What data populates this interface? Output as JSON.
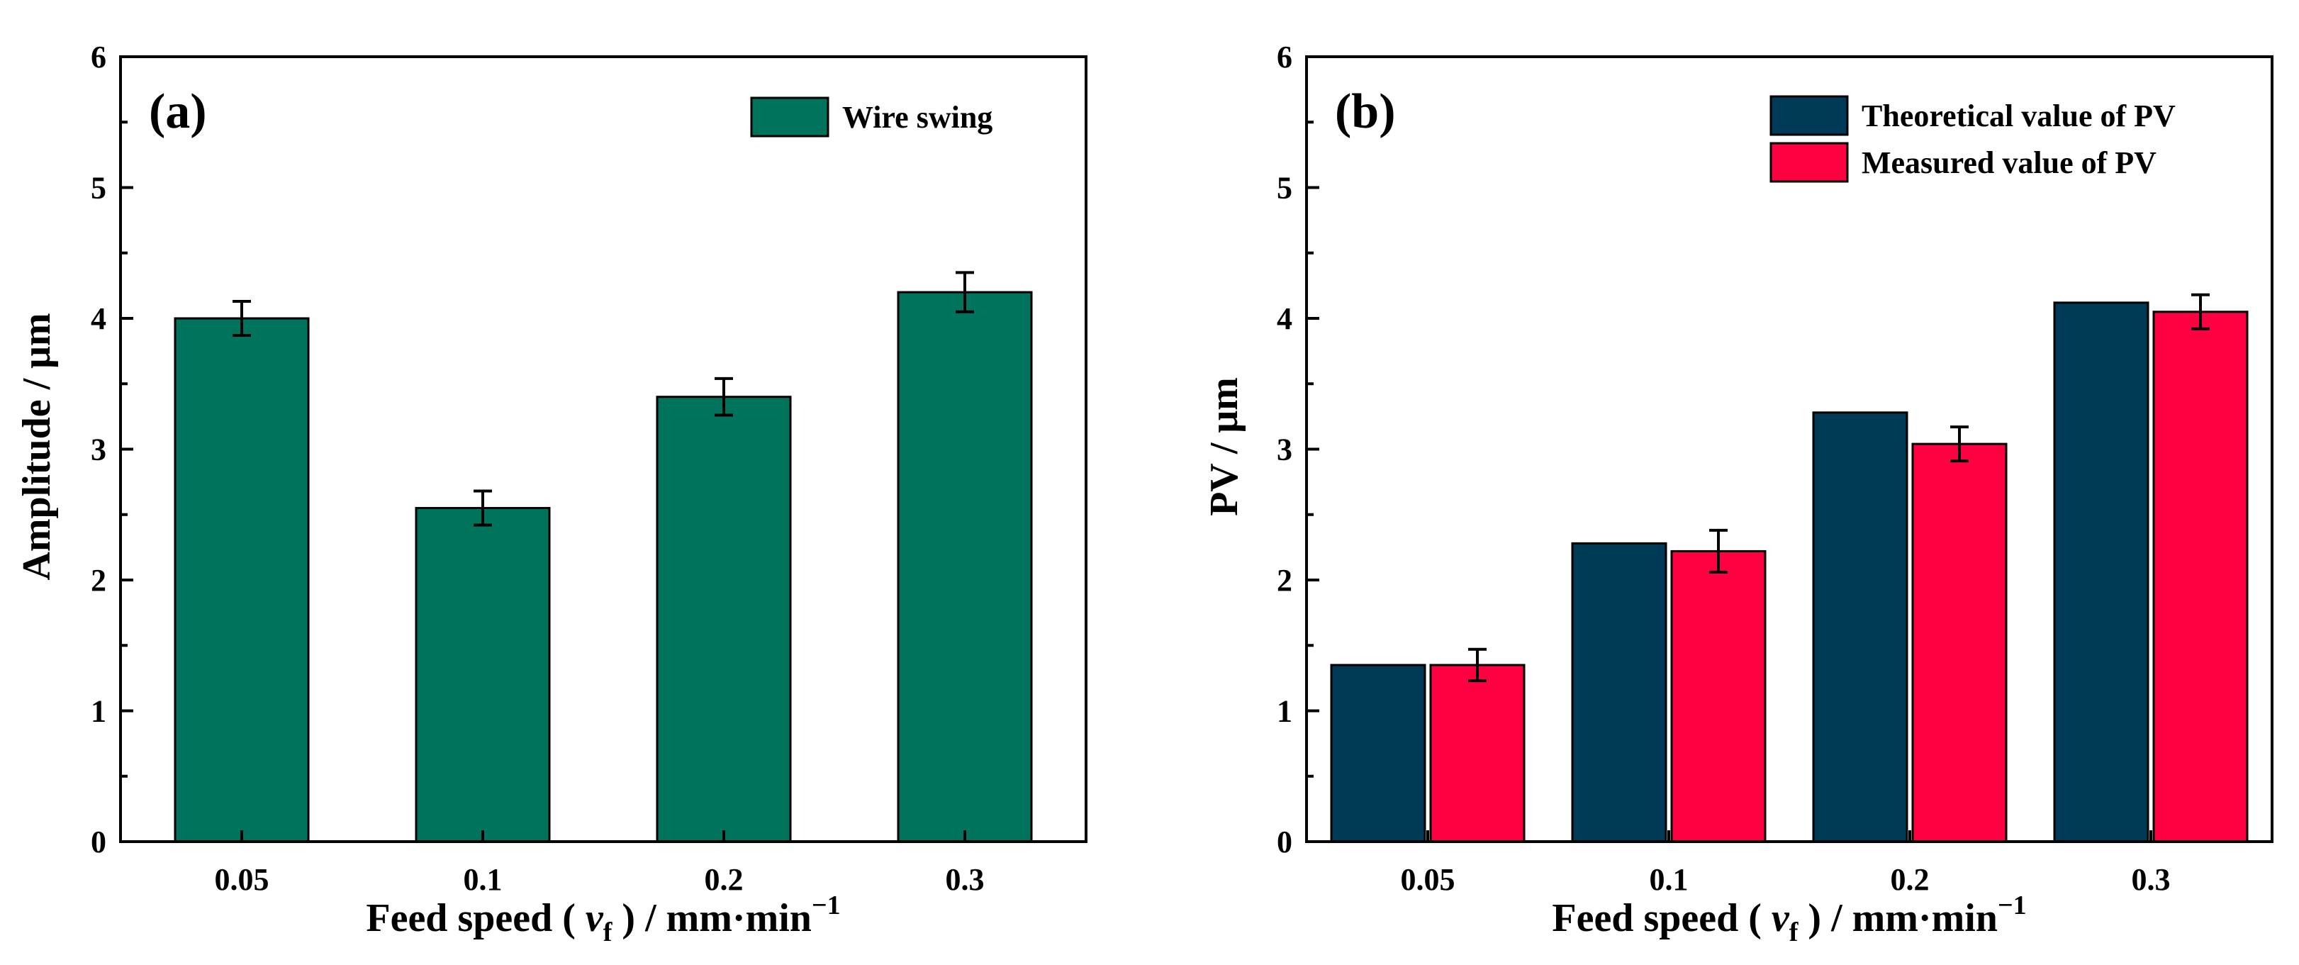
{
  "chart_data": [
    {
      "type": "bar",
      "panel_label": "(a)",
      "categories": [
        "0.05",
        "0.1",
        "0.2",
        "0.3"
      ],
      "series": [
        {
          "name": "Wire swing",
          "color": "#00735C",
          "values": [
            4.0,
            2.55,
            3.4,
            4.2
          ],
          "errors": [
            0.13,
            0.13,
            0.14,
            0.15
          ]
        }
      ],
      "xlabel": {
        "main": "Feed speed (",
        "var": "v",
        "sub": "f",
        "close": ") / mm·min",
        "sup": "−1"
      },
      "ylabel": "Amplitude / μm",
      "ylim": [
        0,
        6
      ],
      "yticks": [
        "0",
        "1",
        "2",
        "3",
        "4",
        "5",
        "6"
      ],
      "legend_position": "top-right"
    },
    {
      "type": "bar",
      "panel_label": "(b)",
      "categories": [
        "0.05",
        "0.1",
        "0.2",
        "0.3"
      ],
      "series": [
        {
          "name": "Theoretical value of PV",
          "color": "#003A56",
          "values": [
            1.35,
            2.28,
            3.28,
            4.12
          ],
          "errors": null
        },
        {
          "name": "Measured value of PV",
          "color": "#FF0040",
          "values": [
            1.35,
            2.22,
            3.04,
            4.05
          ],
          "errors": [
            0.12,
            0.16,
            0.13,
            0.13
          ]
        }
      ],
      "xlabel": {
        "main": "Feed speed (",
        "var": "v",
        "sub": "f",
        "close": ") / mm·min",
        "sup": "−1"
      },
      "ylabel": "PV / μm",
      "ylim": [
        0,
        6
      ],
      "yticks": [
        "0",
        "1",
        "2",
        "3",
        "4",
        "5",
        "6"
      ],
      "legend_position": "top-right"
    }
  ]
}
